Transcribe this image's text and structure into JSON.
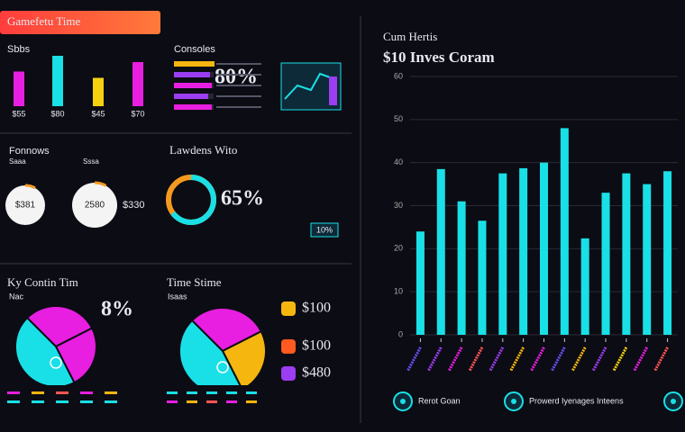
{
  "header": {
    "title": "Gamefetu Time"
  },
  "sales": {
    "label": "Sbbs",
    "values": [
      55,
      80,
      45,
      70
    ],
    "value_labels": [
      "$55",
      "$80",
      "$45",
      "$70"
    ],
    "colors": [
      "#e81ee0",
      "#19e0e6",
      "#f5d10f",
      "#e81ee0"
    ]
  },
  "consoles": {
    "title": "Consoles",
    "values": [
      45,
      40,
      42,
      38,
      42
    ],
    "colors": [
      "#f5b60f",
      "#9b3df0",
      "#e81ee0",
      "#9b3df0",
      "#e81ee0"
    ],
    "percent_label": "80%"
  },
  "followers": {
    "title": "Fonnows",
    "items": [
      {
        "label": "Saaa",
        "value_label": "$381"
      },
      {
        "label": "Sssa",
        "value_label": "2580"
      }
    ],
    "note": "$330"
  },
  "launches": {
    "title": "Lawdens Wito",
    "percent": 65,
    "percent_label": "65%",
    "badge": "10%"
  },
  "key": {
    "title": "Ky Contin Tim",
    "sub": "Nac",
    "values": [
      30,
      25,
      45
    ],
    "colors": [
      "#e81ee0",
      "#e81ee0",
      "#19e0e6"
    ],
    "big_label": "8%"
  },
  "time": {
    "title": "Time Stime",
    "sub": "Isaas",
    "values": [
      30,
      25,
      45
    ],
    "colors": [
      "#e81ee0",
      "#f5b60f",
      "#19e0e6"
    ],
    "items": [
      "$100",
      "$100",
      "$480"
    ]
  },
  "chart_data": {
    "type": "bar",
    "title": "Cum Hertis",
    "subtitle": "$10 Inves Coram",
    "categories": [
      null,
      null,
      null,
      null,
      null,
      null,
      null,
      null,
      null,
      null,
      null,
      null,
      null
    ],
    "values": [
      24,
      38.5,
      31,
      26.5,
      37.5,
      38.7,
      40,
      48,
      22.4,
      33,
      37.5,
      35,
      38
    ],
    "color": "#19e0e6",
    "ylim": [
      0,
      60
    ],
    "yticks": [
      0,
      10,
      20,
      30,
      40,
      50,
      60
    ],
    "grid": true
  },
  "buttons": [
    "Rerot Goan",
    "Prowerd Iyenages Inteens"
  ]
}
